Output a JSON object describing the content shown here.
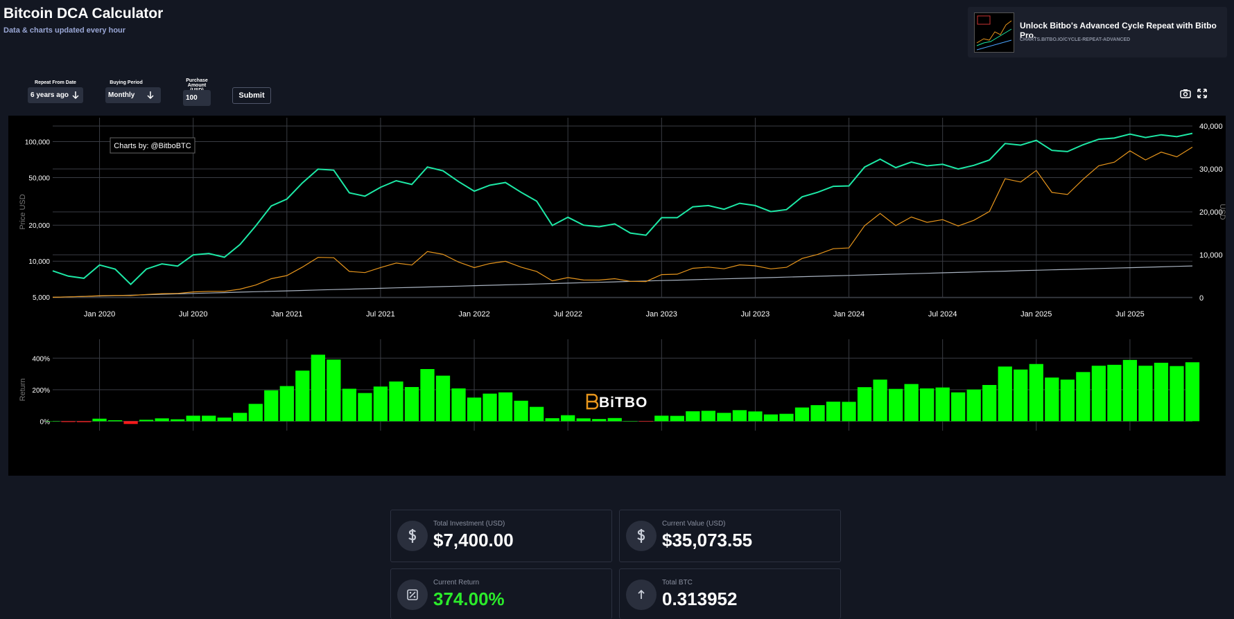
{
  "header": {
    "title": "Bitcoin DCA Calculator",
    "subtitle": "Data & charts updated every hour"
  },
  "promo": {
    "title": "Unlock Bitbo's Advanced Cycle Repeat with Bitbo Pro.",
    "url": "CHARTS.BITBO.IO/CYCLE-REPEAT-ADVANCED"
  },
  "controls": {
    "repeat_label": "Repeat From Date",
    "repeat_value": "6 years ago",
    "period_label": "Buying Period",
    "period_value": "Monthly",
    "amount_label": "Purchase Amount (USD)",
    "amount_value": "100",
    "submit": "Submit"
  },
  "watermarks": {
    "credit": "Charts by: @BitboBTC",
    "logo": "BiTBO"
  },
  "chart_data": [
    {
      "type": "line",
      "log_scale": true,
      "grid": true,
      "y_label": "Price USD",
      "y2_label": "USD",
      "x": [
        "2019-10",
        "2019-11",
        "2019-12",
        "2020-01",
        "2020-02",
        "2020-03",
        "2020-04",
        "2020-05",
        "2020-06",
        "2020-07",
        "2020-08",
        "2020-09",
        "2020-10",
        "2020-11",
        "2020-12",
        "2021-01",
        "2021-02",
        "2021-03",
        "2021-04",
        "2021-05",
        "2021-06",
        "2021-07",
        "2021-08",
        "2021-09",
        "2021-10",
        "2021-11",
        "2021-12",
        "2022-01",
        "2022-02",
        "2022-03",
        "2022-04",
        "2022-05",
        "2022-06",
        "2022-07",
        "2022-08",
        "2022-09",
        "2022-10",
        "2022-11",
        "2022-12",
        "2023-01",
        "2023-02",
        "2023-03",
        "2023-04",
        "2023-05",
        "2023-06",
        "2023-07",
        "2023-08",
        "2023-09",
        "2023-10",
        "2023-11",
        "2023-12",
        "2024-01",
        "2024-02",
        "2024-03",
        "2024-04",
        "2024-05",
        "2024-06",
        "2024-07",
        "2024-08",
        "2024-09",
        "2024-10",
        "2024-11",
        "2024-12",
        "2025-01",
        "2025-02",
        "2025-03",
        "2025-04",
        "2025-05",
        "2025-06",
        "2025-07",
        "2025-08",
        "2025-09",
        "2025-10",
        "2025-11"
      ],
      "xlim": [
        "2019-10",
        "2025-11"
      ],
      "xticks": [
        {
          "value": "2020-01",
          "label": "Jan 2020"
        },
        {
          "value": "2020-07",
          "label": "Jul 2020"
        },
        {
          "value": "2021-01",
          "label": "Jan 2021"
        },
        {
          "value": "2021-07",
          "label": "Jul 2021"
        },
        {
          "value": "2022-01",
          "label": "Jan 2022"
        },
        {
          "value": "2022-07",
          "label": "Jul 2022"
        },
        {
          "value": "2023-01",
          "label": "Jan 2023"
        },
        {
          "value": "2023-07",
          "label": "Jul 2023"
        },
        {
          "value": "2024-01",
          "label": "Jan 2024"
        },
        {
          "value": "2024-07",
          "label": "Jul 2024"
        },
        {
          "value": "2025-01",
          "label": "Jan 2025"
        },
        {
          "value": "2025-07",
          "label": "Jul 2025"
        }
      ],
      "ylim": [
        4950,
        135000
      ],
      "yticks": [
        {
          "value": 5000,
          "label": "5,000"
        },
        {
          "value": 10000,
          "label": "10,000"
        },
        {
          "value": 20000,
          "label": "20,000"
        },
        {
          "value": 50000,
          "label": "50,000"
        },
        {
          "value": 100000,
          "label": "100,000"
        }
      ],
      "y2lim": [
        0,
        40000
      ],
      "y2ticks": [
        0,
        {
          "value": 10000,
          "label": "10,000"
        },
        {
          "value": 20000,
          "label": "20,000"
        },
        {
          "value": 30000,
          "label": "30,000"
        },
        {
          "value": 40000,
          "label": "40,000"
        }
      ],
      "series": [
        {
          "color": "#1de9a6",
          "values": [
            8300,
            7500,
            7200,
            9300,
            8600,
            6400,
            8600,
            9500,
            9100,
            11300,
            11600,
            10800,
            13800,
            19700,
            29000,
            33100,
            45200,
            58800,
            57700,
            37300,
            35000,
            41500,
            47100,
            43800,
            61300,
            57000,
            46300,
            38500,
            43200,
            45500,
            37700,
            31800,
            19900,
            23300,
            20000,
            19400,
            20500,
            17200,
            16500,
            23100,
            23100,
            28500,
            29200,
            27200,
            30500,
            29200,
            26000,
            27000,
            34500,
            37700,
            42300,
            42600,
            61200,
            71300,
            60600,
            67500,
            62700,
            64600,
            59000,
            63300,
            70200,
            96400,
            93400,
            102400,
            84400,
            82500,
            94200,
            104600,
            107100,
            115700,
            108200,
            114000,
            110000,
            117200
          ]
        },
        {
          "color": "#e8961c",
          "axis": "y2",
          "values": [
            100,
            190,
            283,
            465,
            530,
            495,
            765,
            945,
            1005,
            1348,
            1484,
            1481,
            1993,
            2945,
            4435,
            5162,
            7149,
            9400,
            9324,
            6128,
            5850,
            7036,
            8086,
            7619,
            10763,
            10108,
            8310,
            7010,
            7966,
            8490,
            7135,
            6118,
            3929,
            4700,
            4134,
            4110,
            4443,
            3828,
            3772,
            5381,
            5481,
            6862,
            7131,
            6742,
            7660,
            7434,
            6719,
            7078,
            9144,
            10092,
            11423,
            11604,
            16770,
            19637,
            16790,
            18802,
            17565,
            18197,
            16719,
            18038,
            20104,
            27707,
            26945,
            29642,
            24531,
            24056,
            27593,
            30740,
            31574,
            34209,
            32090,
            33912,
            32822,
            35073
          ]
        },
        {
          "color": "#a9b3c1",
          "axis": "y2",
          "values": [
            100,
            200,
            300,
            400,
            500,
            600,
            700,
            800,
            900,
            1000,
            1100,
            1200,
            1300,
            1400,
            1500,
            1600,
            1700,
            1800,
            1900,
            2000,
            2100,
            2200,
            2300,
            2400,
            2500,
            2600,
            2700,
            2800,
            2900,
            3000,
            3100,
            3200,
            3300,
            3400,
            3500,
            3600,
            3700,
            3800,
            3900,
            4000,
            4100,
            4200,
            4300,
            4400,
            4500,
            4600,
            4700,
            4800,
            4900,
            5000,
            5100,
            5200,
            5300,
            5400,
            5500,
            5600,
            5700,
            5800,
            5900,
            6000,
            6100,
            6200,
            6300,
            6400,
            6500,
            6600,
            6700,
            6800,
            6900,
            7000,
            7100,
            7200,
            7300,
            7400
          ]
        }
      ]
    },
    {
      "type": "bar",
      "grid": true,
      "y_label": "Return",
      "color": "#00ff00",
      "negative_color": "#ff1a1a",
      "x": [
        "2019-10",
        "2019-11",
        "2019-12",
        "2020-01",
        "2020-02",
        "2020-03",
        "2020-04",
        "2020-05",
        "2020-06",
        "2020-07",
        "2020-08",
        "2020-09",
        "2020-10",
        "2020-11",
        "2020-12",
        "2021-01",
        "2021-02",
        "2021-03",
        "2021-04",
        "2021-05",
        "2021-06",
        "2021-07",
        "2021-08",
        "2021-09",
        "2021-10",
        "2021-11",
        "2021-12",
        "2022-01",
        "2022-02",
        "2022-03",
        "2022-04",
        "2022-05",
        "2022-06",
        "2022-07",
        "2022-08",
        "2022-09",
        "2022-10",
        "2022-11",
        "2022-12",
        "2023-01",
        "2023-02",
        "2023-03",
        "2023-04",
        "2023-05",
        "2023-06",
        "2023-07",
        "2023-08",
        "2023-09",
        "2023-10",
        "2023-11",
        "2023-12",
        "2024-01",
        "2024-02",
        "2024-03",
        "2024-04",
        "2024-05",
        "2024-06",
        "2024-07",
        "2024-08",
        "2024-09",
        "2024-10",
        "2024-11",
        "2024-12",
        "2025-01",
        "2025-02",
        "2025-03",
        "2025-04",
        "2025-05",
        "2025-06",
        "2025-07",
        "2025-08",
        "2025-09",
        "2025-10",
        "2025-11"
      ],
      "xlim": [
        "2019-10",
        "2025-11"
      ],
      "ylim": [
        -60,
        520
      ],
      "yticks": [
        {
          "value": 0,
          "label": "0%"
        },
        {
          "value": 200,
          "label": "200%"
        },
        {
          "value": 400,
          "label": "400%"
        }
      ],
      "values": [
        0,
        -5,
        -5.7,
        16,
        6,
        -17.5,
        9,
        18,
        12,
        35,
        35,
        23,
        53,
        110,
        196,
        223,
        321,
        422,
        391,
        206,
        179,
        220,
        252,
        217,
        331,
        289,
        208,
        150,
        175,
        183,
        130,
        91,
        19,
        38,
        18,
        14,
        20,
        1,
        -3,
        35,
        34,
        63,
        66,
        53,
        70,
        62,
        43,
        47,
        87,
        102,
        124,
        123,
        216,
        264,
        205,
        236,
        208,
        214,
        183,
        201,
        230,
        347,
        328,
        363,
        277,
        264,
        312,
        352,
        358,
        389,
        352,
        371,
        350,
        374
      ]
    }
  ],
  "stats": [
    {
      "label": "Total Investment (USD)",
      "value": "$7,400.00"
    },
    {
      "label": "Current Value (USD)",
      "value": "$35,073.55"
    },
    {
      "label": "Current Return",
      "value": "374.00%"
    },
    {
      "label": "Total BTC",
      "value": "0.313952"
    }
  ]
}
